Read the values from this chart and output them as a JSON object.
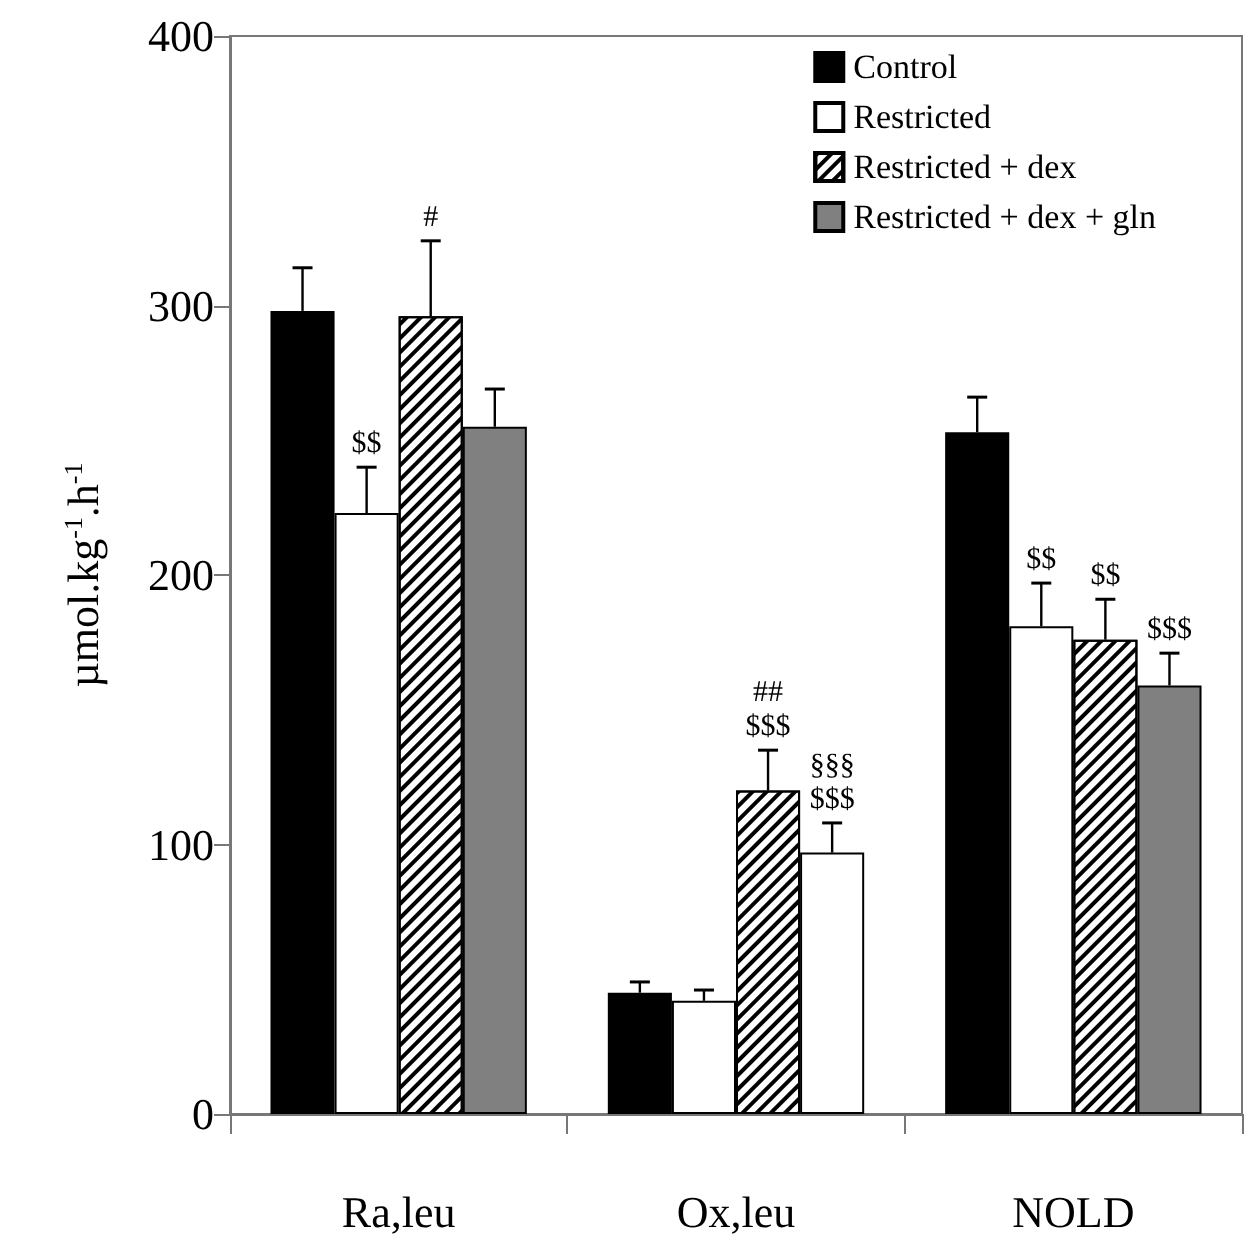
{
  "chart_data": {
    "type": "bar",
    "ylabel": "µmol.kg$^{-1}$.h$^{-1}$",
    "categories": [
      "Ra,leu",
      "Ox,leu",
      "NOLD"
    ],
    "series": [
      {
        "name": "Control",
        "color": "#000000",
        "values": [
          298,
          45,
          253
        ],
        "errors": [
          16,
          4,
          13
        ]
      },
      {
        "name": "Restricted",
        "color": "#ffffff",
        "values": [
          223,
          42,
          181
        ],
        "errors": [
          17,
          4,
          16
        ]
      },
      {
        "name": "Restricted + dex",
        "color": "#ffffff",
        "values": [
          296,
          120,
          176
        ],
        "errors": [
          28,
          15,
          15
        ]
      },
      {
        "name": "Restricted + dex + gln",
        "color": "#808080",
        "colors": [
          "#808080",
          "#ffffff",
          "#808080"
        ],
        "values": [
          255,
          97,
          159
        ],
        "errors": [
          14,
          11,
          12
        ]
      }
    ],
    "ylim": [
      0,
      400
    ],
    "yticks": [
      0,
      100,
      200,
      300,
      400
    ],
    "grid": false,
    "legend": "top right",
    "annotations": [
      {
        "text": "$$",
        "x": "Ra,leu",
        "y": 223
      },
      {
        "text": "#",
        "x": "Ra,leu",
        "y": 296
      },
      {
        "text": "##\n$$$",
        "x": "Ox,leu",
        "y": 120
      },
      {
        "text": "§§§\n$$$",
        "x": "Ox,leu",
        "y": 97
      },
      {
        "text": "$$",
        "x": "NOLD",
        "y": 181
      },
      {
        "text": "$$",
        "x": "NOLD",
        "y": 176
      },
      {
        "text": "$$$",
        "x": "NOLD",
        "y": 159
      }
    ]
  }
}
